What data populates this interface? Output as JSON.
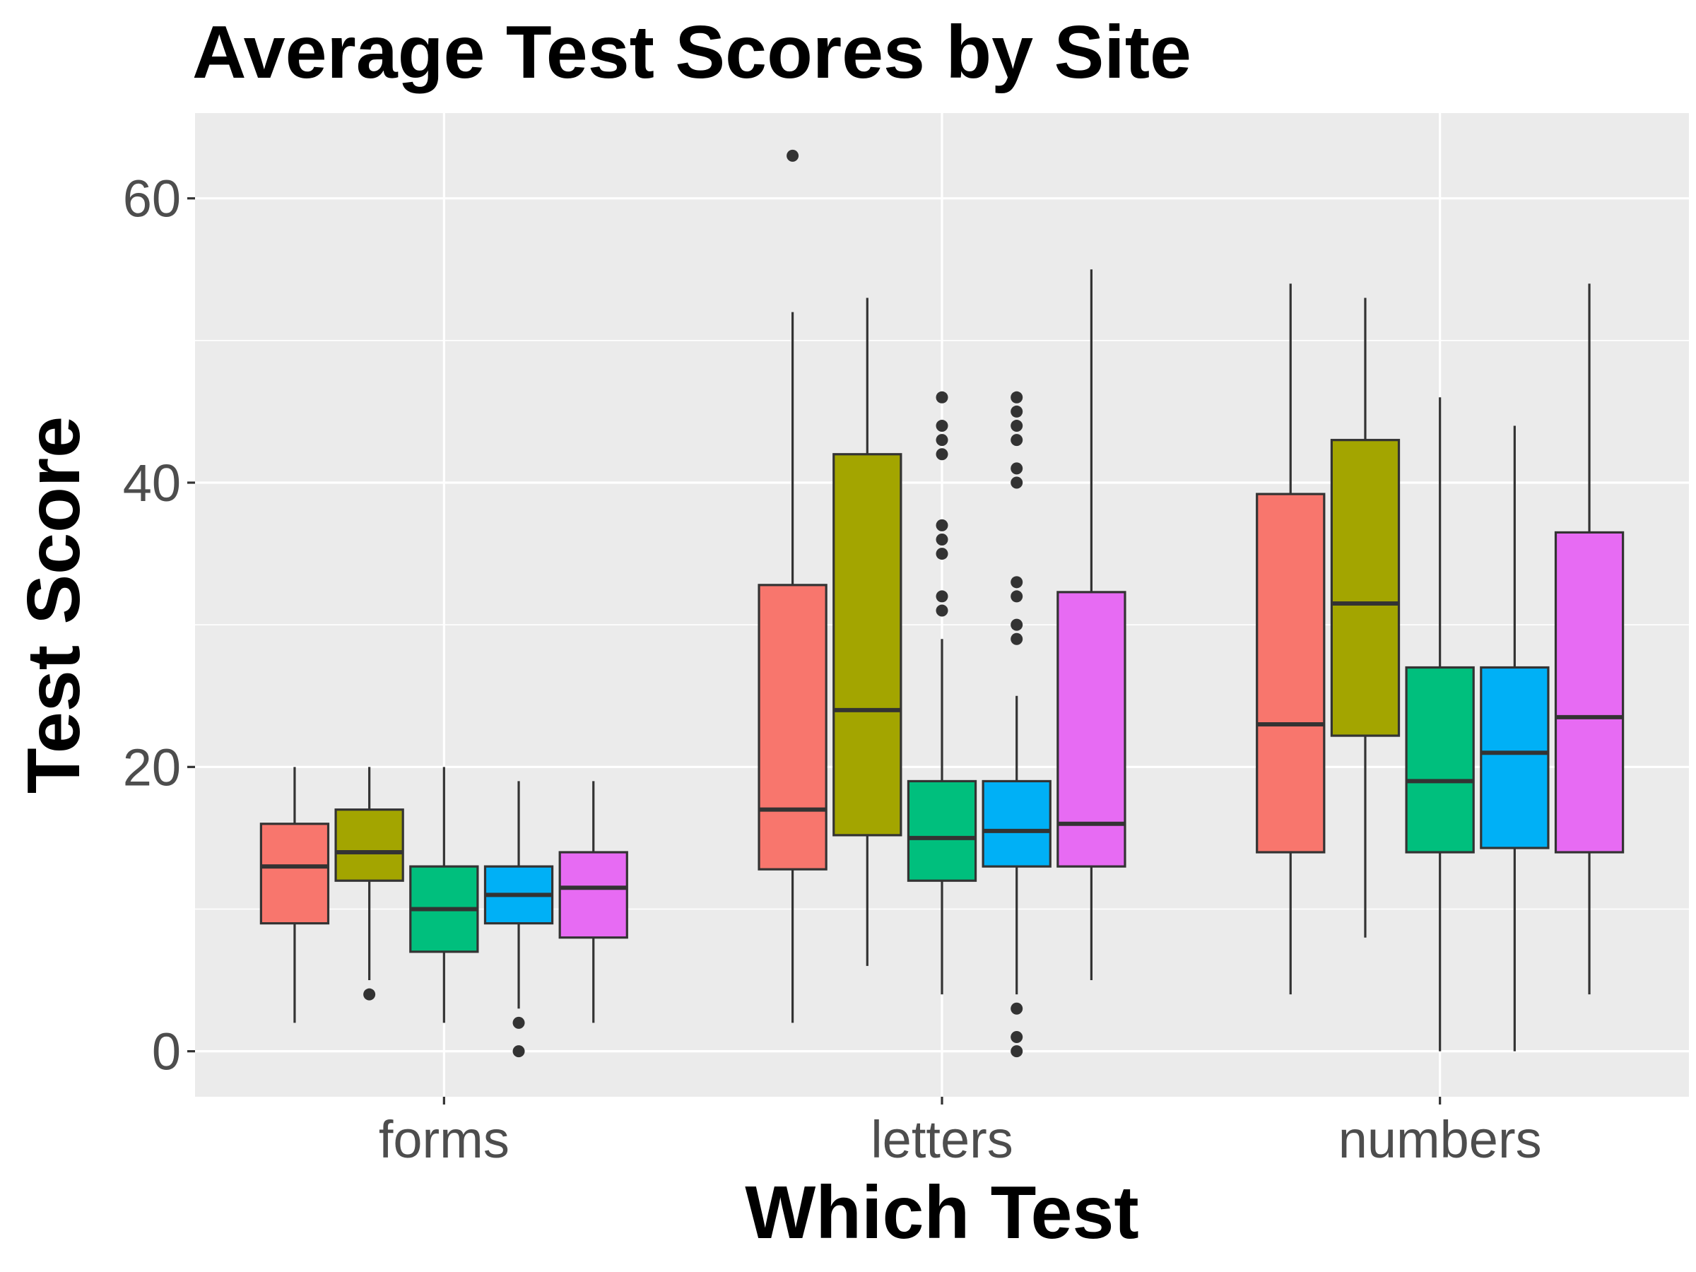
{
  "chart_data": {
    "type": "boxplot",
    "title": "Average Test Scores by Site",
    "xlabel": "Which Test",
    "ylabel": "Test Score",
    "categories": [
      "forms",
      "letters",
      "numbers"
    ],
    "ylim": [
      -3.2,
      66
    ],
    "yticks": [
      0,
      20,
      40,
      60
    ],
    "grid": true,
    "legend": "none",
    "panel_color": "#ebebeb",
    "grid_color": "#ffffff",
    "box_outline_color": "#333333",
    "fill_colors": [
      "#f8766d",
      "#a3a500",
      "#00bf7d",
      "#00b0f6",
      "#e76bf3"
    ],
    "boxes": [
      [
        {
          "q1": 9,
          "median": 13,
          "q3": 16,
          "whisker_low": 2,
          "whisker_high": 20,
          "outliers": []
        },
        {
          "q1": 12,
          "median": 14,
          "q3": 17,
          "whisker_low": 5,
          "whisker_high": 20,
          "outliers": [
            4
          ]
        },
        {
          "q1": 7,
          "median": 10,
          "q3": 13,
          "whisker_low": 2,
          "whisker_high": 20,
          "outliers": []
        },
        {
          "q1": 9,
          "median": 11,
          "q3": 13,
          "whisker_low": 3,
          "whisker_high": 19,
          "outliers": [
            2,
            0
          ]
        },
        {
          "q1": 8,
          "median": 11.5,
          "q3": 14,
          "whisker_low": 2,
          "whisker_high": 19,
          "outliers": []
        }
      ],
      [
        {
          "q1": 12.8,
          "median": 17,
          "q3": 32.8,
          "whisker_low": 2,
          "whisker_high": 52,
          "outliers": [
            63
          ]
        },
        {
          "q1": 15.2,
          "median": 24,
          "q3": 42,
          "whisker_low": 6,
          "whisker_high": 53,
          "outliers": []
        },
        {
          "q1": 12,
          "median": 15,
          "q3": 19,
          "whisker_low": 4,
          "whisker_high": 29,
          "outliers": [
            31,
            32,
            35,
            36,
            37,
            42,
            43,
            44,
            46
          ]
        },
        {
          "q1": 13,
          "median": 15.5,
          "q3": 19,
          "whisker_low": 4,
          "whisker_high": 25,
          "outliers": [
            0,
            1,
            3,
            29,
            30,
            32,
            33,
            40,
            41,
            43,
            44,
            45,
            46
          ]
        },
        {
          "q1": 13,
          "median": 16,
          "q3": 32.3,
          "whisker_low": 5,
          "whisker_high": 55,
          "outliers": []
        }
      ],
      [
        {
          "q1": 14,
          "median": 23,
          "q3": 39.2,
          "whisker_low": 4,
          "whisker_high": 54,
          "outliers": []
        },
        {
          "q1": 22.2,
          "median": 31.5,
          "q3": 43,
          "whisker_low": 8,
          "whisker_high": 53,
          "outliers": []
        },
        {
          "q1": 14,
          "median": 19,
          "q3": 27,
          "whisker_low": 0,
          "whisker_high": 46,
          "outliers": []
        },
        {
          "q1": 14.3,
          "median": 21,
          "q3": 27,
          "whisker_low": 0,
          "whisker_high": 44,
          "outliers": []
        },
        {
          "q1": 14,
          "median": 23.5,
          "q3": 36.5,
          "whisker_low": 4,
          "whisker_high": 54,
          "outliers": []
        }
      ]
    ]
  }
}
